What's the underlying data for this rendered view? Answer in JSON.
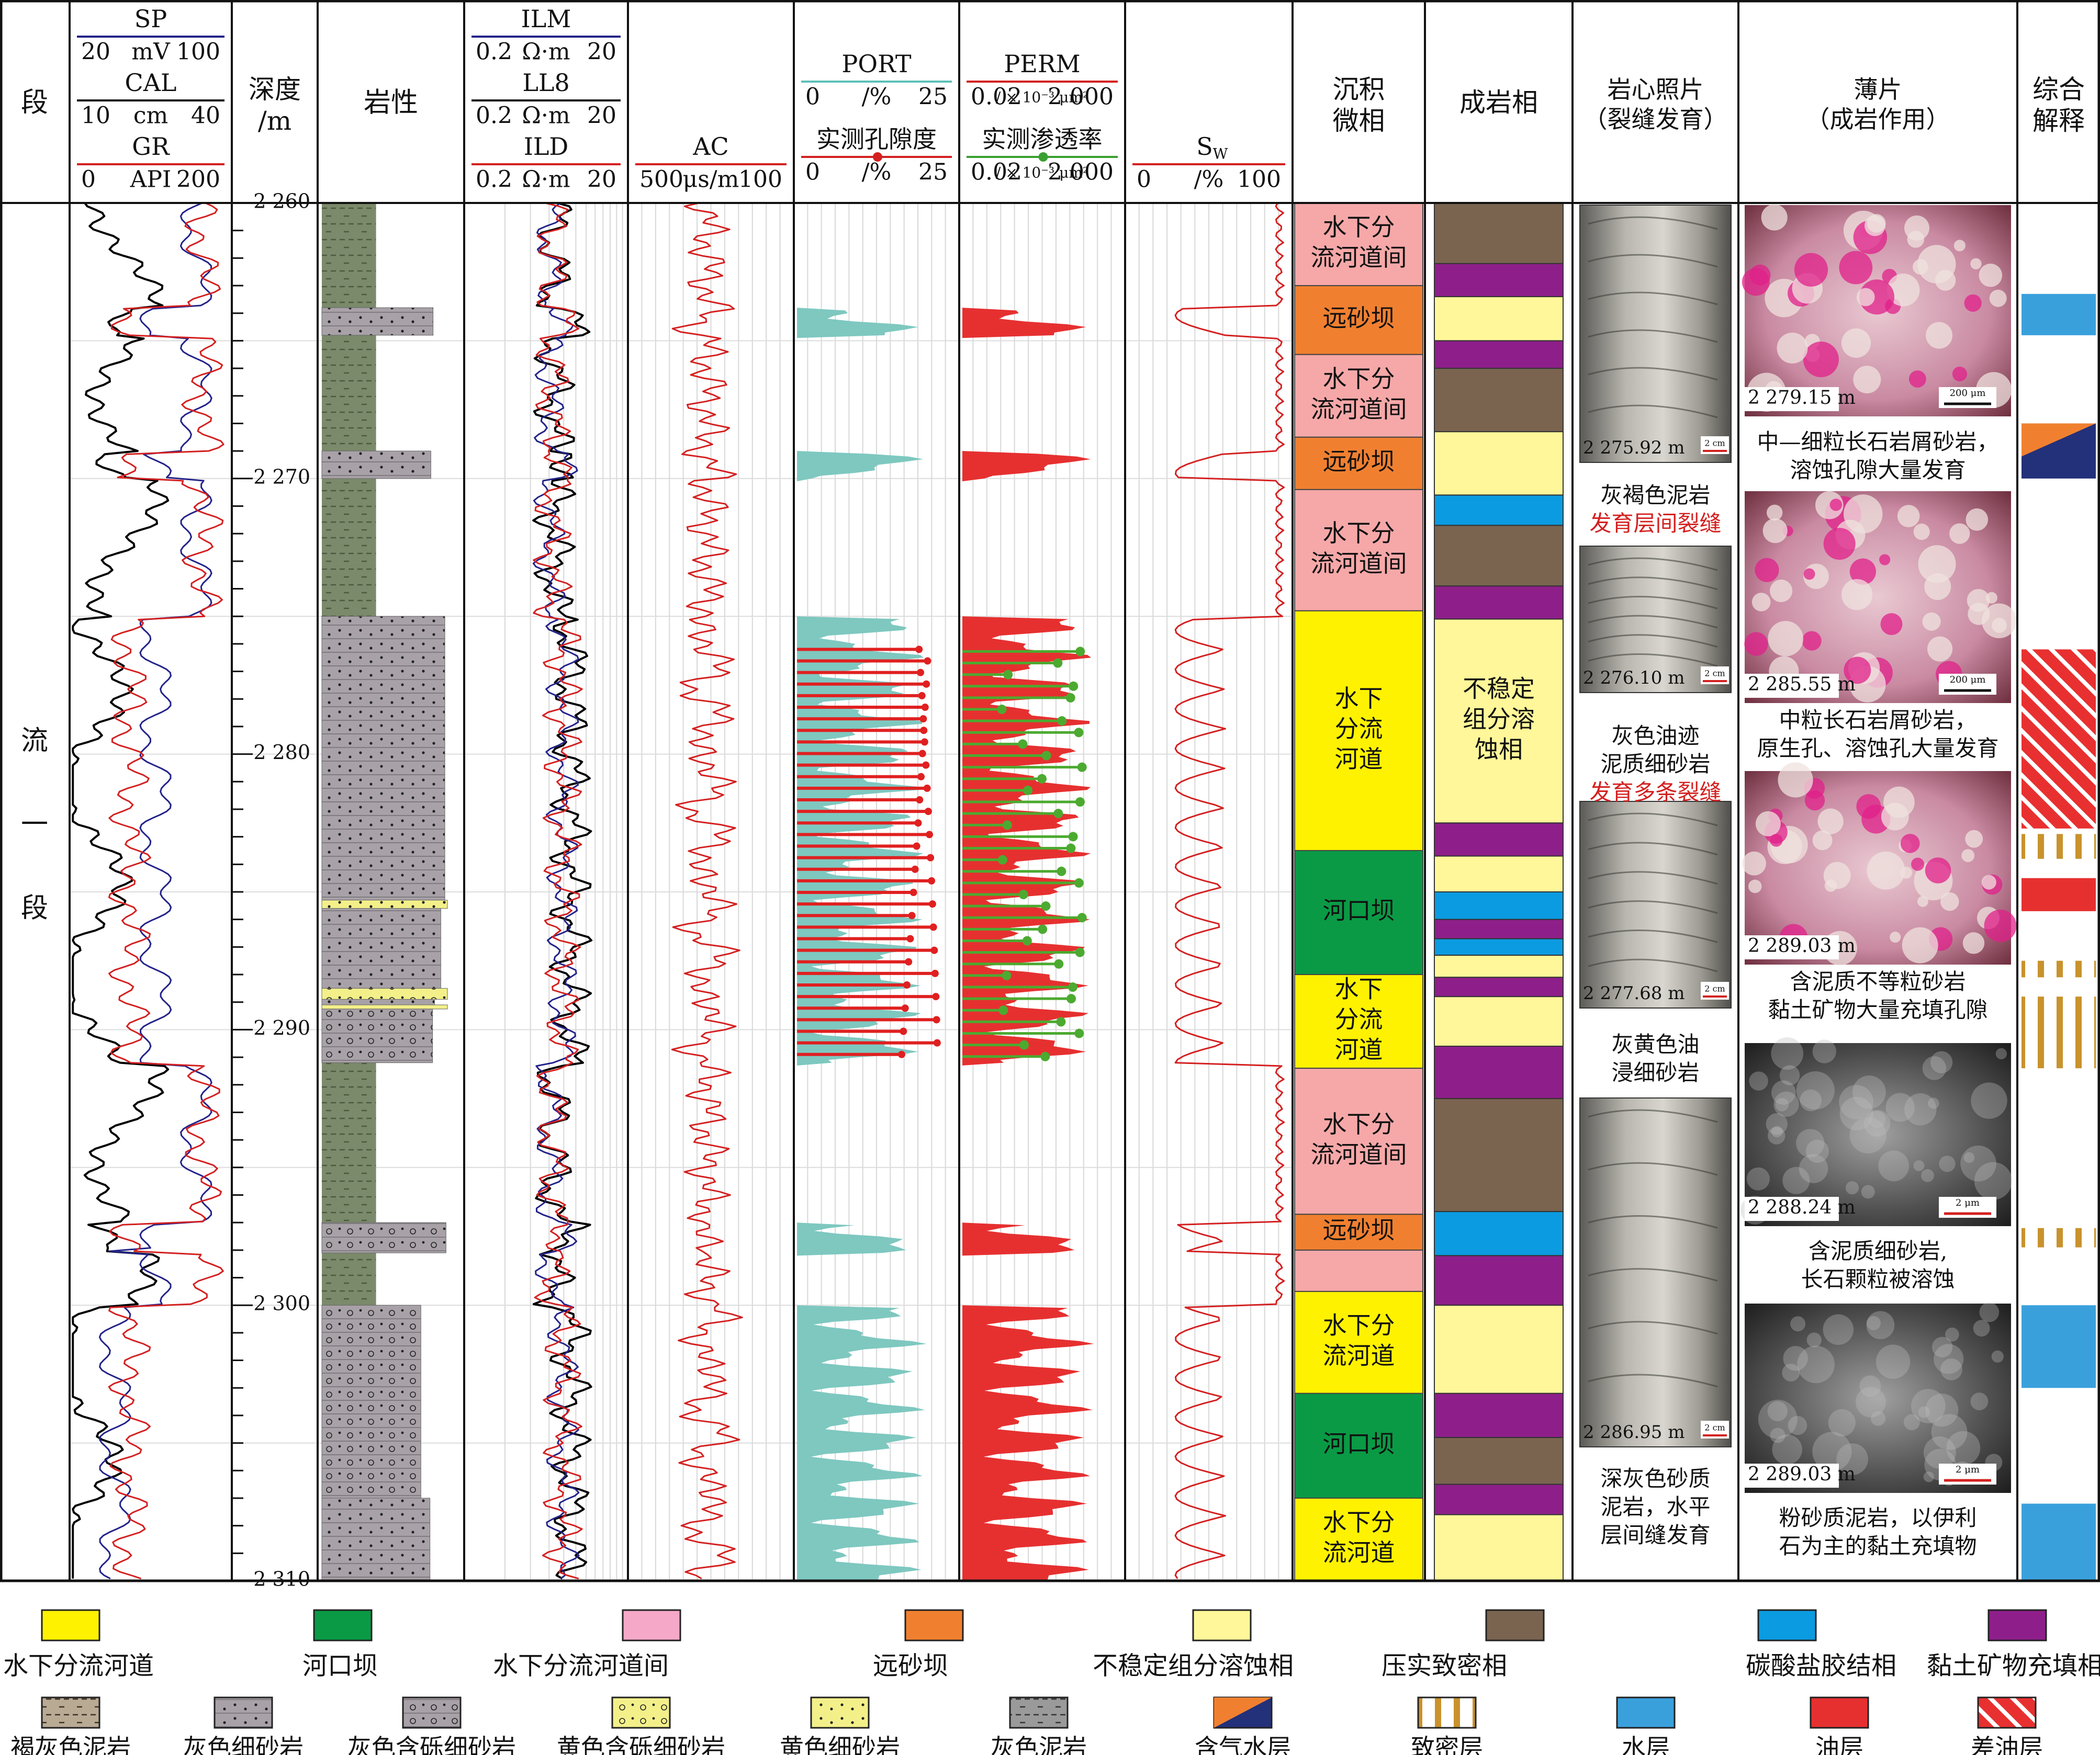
{
  "headers": {
    "stage": "段",
    "sp": {
      "name": "SP",
      "min": "20",
      "unit": "mV",
      "max": "100"
    },
    "cal": {
      "name": "CAL",
      "min": "10",
      "unit": "cm",
      "max": "40"
    },
    "gr": {
      "name": "GR",
      "min": "0",
      "unit": "API",
      "max": "200"
    },
    "depth": [
      "深度",
      "/m"
    ],
    "lith": "岩性",
    "ilm": {
      "name": "ILM",
      "min": "0.2",
      "unit": "Ω·m",
      "max": "20"
    },
    "ll8": {
      "name": "LL8",
      "min": "0.2",
      "unit": "Ω·m",
      "max": "20"
    },
    "ild": {
      "name": "ILD",
      "min": "0.2",
      "unit": "Ω·m",
      "max": "20"
    },
    "ac": {
      "name": "AC",
      "min": "500",
      "unit": "μs/m",
      "max": "100"
    },
    "port": {
      "name": "PORT",
      "min": "0",
      "unit": "/%",
      "max": "25"
    },
    "por_meas": {
      "name": "实测孔隙度",
      "min": "0",
      "unit": "/%",
      "max": "25"
    },
    "perm": {
      "name": "PERM",
      "min": "0.02",
      "unit": "/ × 10⁻³ μm²",
      "max": "2 000"
    },
    "perm_meas": {
      "name": "实测渗透率",
      "min": "0.02",
      "unit": "/ × 10⁻³ μm²",
      "max": "2 000"
    },
    "sw": {
      "name": "S",
      "sub": "W",
      "min": "0",
      "unit": "/%",
      "max": "100"
    },
    "microfacies": [
      "沉积",
      "微相"
    ],
    "diagenetic": "成岩相",
    "core": [
      "岩心照片",
      "（裂缝发育）"
    ],
    "thin": [
      "薄片",
      "（成岩作用）"
    ],
    "interp": [
      "综合",
      "解释"
    ]
  },
  "stage_name": [
    "流",
    "一",
    "段"
  ],
  "depth_ticks": [
    "2 260",
    "2 270",
    "2 280",
    "2 290",
    "2 300",
    "2 310"
  ],
  "microfacies_blocks": [
    {
      "from": 2260,
      "to": 2263.0,
      "lines": [
        "水下分",
        "流河道间"
      ],
      "color": "#f6a8a8"
    },
    {
      "from": 2263.0,
      "to": 2265.5,
      "lines": [
        "远砂坝"
      ],
      "color": "#f08030"
    },
    {
      "from": 2265.5,
      "to": 2268.5,
      "lines": [
        "水下分",
        "流河道间"
      ],
      "color": "#f6a8a8"
    },
    {
      "from": 2268.5,
      "to": 2270.4,
      "lines": [
        "远砂坝"
      ],
      "color": "#f08030"
    },
    {
      "from": 2270.4,
      "to": 2274.8,
      "lines": [
        "水下分",
        "流河道间"
      ],
      "color": "#f6a8a8"
    },
    {
      "from": 2274.8,
      "to": 2283.5,
      "lines": [
        "水下",
        "分流",
        "河道"
      ],
      "color": "#fff200"
    },
    {
      "from": 2283.5,
      "to": 2288.0,
      "lines": [
        "河口坝"
      ],
      "color": "#0a9a45"
    },
    {
      "from": 2288.0,
      "to": 2291.4,
      "lines": [
        "水下",
        "分流",
        "河道"
      ],
      "color": "#fff200"
    },
    {
      "from": 2291.4,
      "to": 2296.7,
      "lines": [
        "水下分",
        "流河道间"
      ],
      "color": "#f6a8a8"
    },
    {
      "from": 2296.7,
      "to": 2298.0,
      "lines": [
        "远砂坝"
      ],
      "color": "#f08030"
    },
    {
      "from": 2298.0,
      "to": 2299.5,
      "lines": [
        ""
      ],
      "color": "#f6a8a8"
    },
    {
      "from": 2299.5,
      "to": 2303.2,
      "lines": [
        "水下分",
        "流河道"
      ],
      "color": "#fff200"
    },
    {
      "from": 2303.2,
      "to": 2307.0,
      "lines": [
        "河口坝"
      ],
      "color": "#0a9a45"
    },
    {
      "from": 2307.0,
      "to": 2310,
      "lines": [
        "水下分",
        "流河道"
      ],
      "color": "#fff200"
    }
  ],
  "diagenetic_blocks": [
    {
      "from": 2260,
      "to": 2262.2,
      "type": "compact"
    },
    {
      "from": 2262.2,
      "to": 2263.4,
      "type": "clay"
    },
    {
      "from": 2263.4,
      "to": 2265.0,
      "type": "unstable"
    },
    {
      "from": 2265.0,
      "to": 2266.0,
      "type": "clay"
    },
    {
      "from": 2266.0,
      "to": 2268.3,
      "type": "compact"
    },
    {
      "from": 2268.3,
      "to": 2270.6,
      "type": "unstable"
    },
    {
      "from": 2270.6,
      "to": 2271.7,
      "type": "carbonate"
    },
    {
      "from": 2271.7,
      "to": 2273.9,
      "type": "compact"
    },
    {
      "from": 2273.9,
      "to": 2275.1,
      "type": "clay"
    },
    {
      "from": 2275.1,
      "to": 2282.5,
      "type": "unstable",
      "label": [
        "不稳定",
        "组分溶",
        "蚀相"
      ]
    },
    {
      "from": 2282.5,
      "to": 2283.7,
      "type": "clay"
    },
    {
      "from": 2283.7,
      "to": 2285.0,
      "type": "unstable"
    },
    {
      "from": 2285.0,
      "to": 2286.0,
      "type": "carbonate"
    },
    {
      "from": 2286.0,
      "to": 2286.7,
      "type": "clay"
    },
    {
      "from": 2286.7,
      "to": 2287.3,
      "type": "carbonate"
    },
    {
      "from": 2287.3,
      "to": 2288.1,
      "type": "unstable"
    },
    {
      "from": 2288.1,
      "to": 2288.8,
      "type": "clay"
    },
    {
      "from": 2288.8,
      "to": 2290.6,
      "type": "unstable"
    },
    {
      "from": 2290.6,
      "to": 2292.5,
      "type": "clay"
    },
    {
      "from": 2292.5,
      "to": 2296.6,
      "type": "compact"
    },
    {
      "from": 2296.6,
      "to": 2298.2,
      "type": "carbonate"
    },
    {
      "from": 2298.2,
      "to": 2300.0,
      "type": "clay"
    },
    {
      "from": 2300.0,
      "to": 2303.2,
      "type": "unstable"
    },
    {
      "from": 2303.2,
      "to": 2304.8,
      "type": "clay"
    },
    {
      "from": 2304.8,
      "to": 2306.5,
      "type": "compact"
    },
    {
      "from": 2306.5,
      "to": 2307.6,
      "type": "clay"
    },
    {
      "from": 2307.6,
      "to": 2310,
      "type": "unstable"
    }
  ],
  "diagenetic_colors": {
    "unstable": "#fff799",
    "compact": "#7a6450",
    "carbonate": "#0b9be0",
    "clay": "#8e1f8a"
  },
  "core_photos": [
    {
      "depth": "2 275.92 m",
      "caption": [
        "灰褐色泥岩"
      ],
      "highlight": [
        "发育层间裂缝"
      ]
    },
    {
      "depth": "2 276.10 m",
      "caption": [
        "灰色油迹",
        "泥质细砂岩"
      ],
      "highlight": [
        "发育多条裂缝"
      ]
    },
    {
      "depth": "2 277.68 m",
      "caption": [
        "灰黄色油",
        "浸细砂岩"
      ],
      "highlight": []
    },
    {
      "depth": "2 286.95 m",
      "caption": [
        "深灰色砂质",
        "泥岩，水平",
        "层间缝发育"
      ],
      "highlight": []
    }
  ],
  "core_scale": "2 cm",
  "thin_sections": [
    {
      "depth": "2 279.15 m",
      "scale": "200 μm",
      "caption": [
        "中—细粒长石岩屑砂岩，",
        "溶蚀孔隙大量发育"
      ]
    },
    {
      "depth": "2 285.55 m",
      "scale": "200 μm",
      "caption": [
        "中粒长石岩屑砂岩，",
        "原生孔、溶蚀孔大量发育"
      ]
    },
    {
      "depth": "2 289.03 m",
      "scale": "",
      "caption": [
        "含泥质不等粒砂岩",
        "黏土矿物大量充填孔隙"
      ]
    },
    {
      "depth": "2 288.24 m",
      "scale": "2 μm",
      "caption": [
        "含泥质细砂岩,",
        "长石颗粒被溶蚀"
      ]
    },
    {
      "depth": "2 289.03 m",
      "scale": "2 μm",
      "caption": [
        "粉砂质泥岩，以伊利",
        "石为主的黏土充填物"
      ]
    }
  ],
  "interp_blocks": [
    {
      "from": 2263.3,
      "to": 2264.8,
      "type": "water"
    },
    {
      "from": 2268.0,
      "to": 2270.0,
      "type": "gas_water"
    },
    {
      "from": 2276.2,
      "to": 2282.7,
      "type": "poor_oil"
    },
    {
      "from": 2282.9,
      "to": 2283.8,
      "type": "tight"
    },
    {
      "from": 2284.5,
      "to": 2285.7,
      "type": "oil"
    },
    {
      "from": 2287.5,
      "to": 2288.1,
      "type": "tight"
    },
    {
      "from": 2288.8,
      "to": 2291.4,
      "type": "tight"
    },
    {
      "from": 2297.2,
      "to": 2297.9,
      "type": "tight"
    },
    {
      "from": 2300.0,
      "to": 2303.0,
      "type": "water"
    },
    {
      "from": 2307.2,
      "to": 2310,
      "type": "water"
    }
  ],
  "legend_row1": [
    {
      "label": "水下分流河道",
      "color": "#fff200",
      "kind": "solid"
    },
    {
      "label": "河口坝",
      "color": "#0a9a45",
      "kind": "solid"
    },
    {
      "label": "水下分流河道间",
      "color": "#f6a8c8",
      "kind": "solid"
    },
    {
      "label": "远砂坝",
      "color": "#f08030",
      "kind": "solid"
    },
    {
      "label": "不稳定组分溶蚀相",
      "color": "#fff799",
      "kind": "solid"
    },
    {
      "label": "压实致密相",
      "color": "#7a6450",
      "kind": "solid"
    },
    {
      "label": "碳酸盐胶结相",
      "color": "#0b9be0",
      "kind": "solid"
    },
    {
      "label": "黏土矿物充填相",
      "color": "#8e1f8a",
      "kind": "solid"
    }
  ],
  "legend_row2": [
    {
      "label": "褐灰色泥岩",
      "kind": "mud_brown"
    },
    {
      "label": "灰色细砂岩",
      "kind": "sand_gray"
    },
    {
      "label": "灰色含砾细砂岩",
      "kind": "pebble_gray"
    },
    {
      "label": "黄色含砾细砂岩",
      "kind": "pebble_yellow"
    },
    {
      "label": "黄色细砂岩",
      "kind": "sand_yellow"
    },
    {
      "label": "灰色泥岩",
      "kind": "mud_gray"
    },
    {
      "label": "含气水层",
      "kind": "gas_water"
    },
    {
      "label": "致密层",
      "kind": "tight"
    },
    {
      "label": "水层",
      "kind": "water"
    },
    {
      "label": "油层",
      "kind": "oil"
    },
    {
      "label": "差油层",
      "kind": "poor_oil"
    }
  ]
}
